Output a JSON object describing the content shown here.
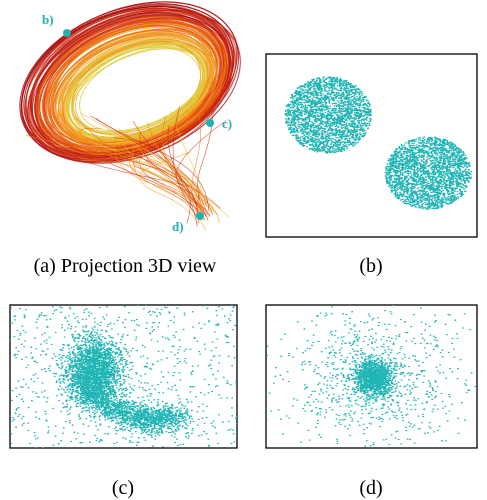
{
  "figure": {
    "captions": [
      "(a) Projection 3D view",
      "(b)",
      "(c)",
      "(d)"
    ],
    "markers": [
      "b)",
      "c)",
      "d)"
    ]
  }
}
